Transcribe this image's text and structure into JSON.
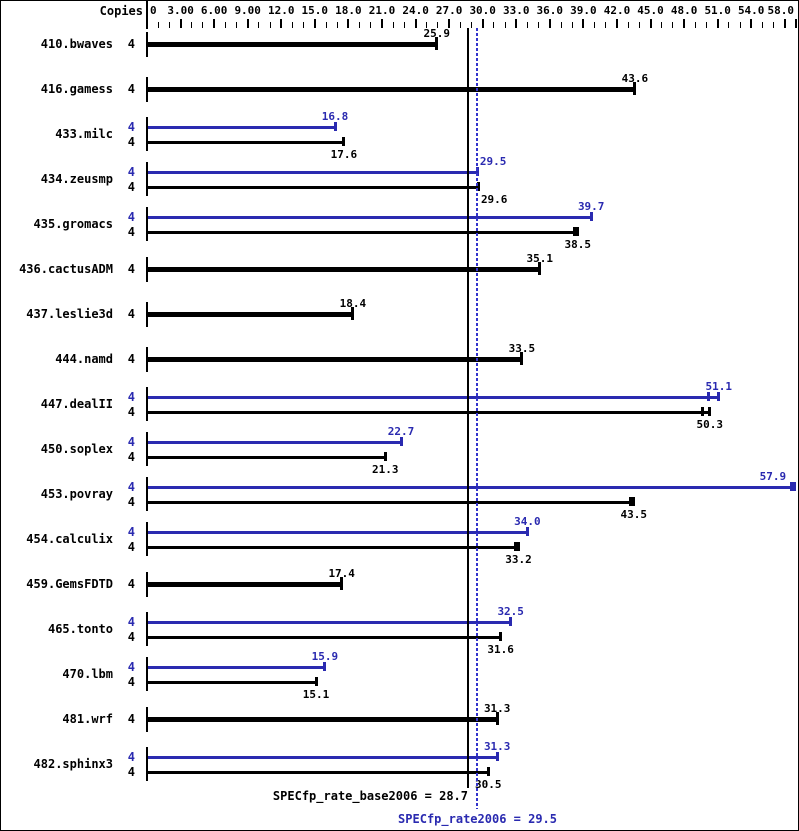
{
  "chart_data": {
    "type": "bar",
    "orientation": "horizontal",
    "title": "",
    "copies_header": "Copies",
    "axis": {
      "min": 0,
      "max": 58,
      "grid": false,
      "tick_labels": [
        {
          "v": 0,
          "t": "0"
        },
        {
          "v": 3,
          "t": "3.00"
        },
        {
          "v": 6,
          "t": "6.00"
        },
        {
          "v": 9,
          "t": "9.00"
        },
        {
          "v": 12,
          "t": "12.0"
        },
        {
          "v": 15,
          "t": "15.0"
        },
        {
          "v": 18,
          "t": "18.0"
        },
        {
          "v": 21,
          "t": "21.0"
        },
        {
          "v": 24,
          "t": "24.0"
        },
        {
          "v": 27,
          "t": "27.0"
        },
        {
          "v": 30,
          "t": "30.0"
        },
        {
          "v": 33,
          "t": "33.0"
        },
        {
          "v": 36,
          "t": "36.0"
        },
        {
          "v": 39,
          "t": "39.0"
        },
        {
          "v": 42,
          "t": "42.0"
        },
        {
          "v": 45,
          "t": "45.0"
        },
        {
          "v": 48,
          "t": "48.0"
        },
        {
          "v": 51,
          "t": "51.0"
        },
        {
          "v": 54,
          "t": "54.0"
        },
        {
          "v": 58,
          "t": "58.0"
        }
      ]
    },
    "colors": {
      "base": "#000000",
      "peak": "#2a2ab0",
      "dotted_line": "#3333cc"
    },
    "legend_note": "black thick/thin bars = base, blue bars = peak",
    "reference_lines": [
      {
        "name": "base_mean",
        "value": 28.7,
        "style": "solid",
        "color": "#000000",
        "label": "SPECfp_rate_base2006 = 28.7"
      },
      {
        "name": "peak_mean",
        "value": 29.5,
        "style": "dotted",
        "color": "#2a2ab0",
        "label": "SPECfp_rate2006 = 29.5"
      }
    ],
    "benchmarks": [
      {
        "name": "410.bwaves",
        "copies": 4,
        "base": 25.9
      },
      {
        "name": "416.gamess",
        "copies": 4,
        "base": 43.6
      },
      {
        "name": "433.milc",
        "copies": 4,
        "peak": 16.8,
        "base": 17.6
      },
      {
        "name": "434.zeusmp",
        "copies": 4,
        "peak": 29.5,
        "base": 29.6,
        "peak_label_dx": 16,
        "base_label_dx": 16
      },
      {
        "name": "435.gromacs",
        "copies": 4,
        "peak": 39.7,
        "base": 38.5,
        "base_marks": [
          38.2,
          38.5
        ]
      },
      {
        "name": "436.cactusADM",
        "copies": 4,
        "base": 35.1
      },
      {
        "name": "437.leslie3d",
        "copies": 4,
        "base": 18.4
      },
      {
        "name": "444.namd",
        "copies": 4,
        "base": 33.5
      },
      {
        "name": "447.dealII",
        "copies": 4,
        "peak": 51.1,
        "base": 50.3,
        "peak_marks": [
          50.2,
          51.1
        ],
        "base_marks": [
          49.6,
          50.3
        ]
      },
      {
        "name": "450.soplex",
        "copies": 4,
        "peak": 22.7,
        "base": 21.3
      },
      {
        "name": "453.povray",
        "copies": 4,
        "peak": 57.9,
        "base": 43.5,
        "peak_marks": [
          57.6,
          57.9
        ],
        "base_marks": [
          43.2,
          43.5
        ],
        "peak_label_dx": -22
      },
      {
        "name": "454.calculix",
        "copies": 4,
        "peak": 34.0,
        "base": 33.2,
        "base_marks": [
          32.9,
          33.2
        ]
      },
      {
        "name": "459.GemsFDTD",
        "copies": 4,
        "base": 17.4
      },
      {
        "name": "465.tonto",
        "copies": 4,
        "peak": 32.5,
        "base": 31.6
      },
      {
        "name": "470.lbm",
        "copies": 4,
        "peak": 15.9,
        "base": 15.1
      },
      {
        "name": "481.wrf",
        "copies": 4,
        "base": 31.3
      },
      {
        "name": "482.sphinx3",
        "copies": 4,
        "peak": 31.3,
        "base": 30.5
      }
    ]
  }
}
